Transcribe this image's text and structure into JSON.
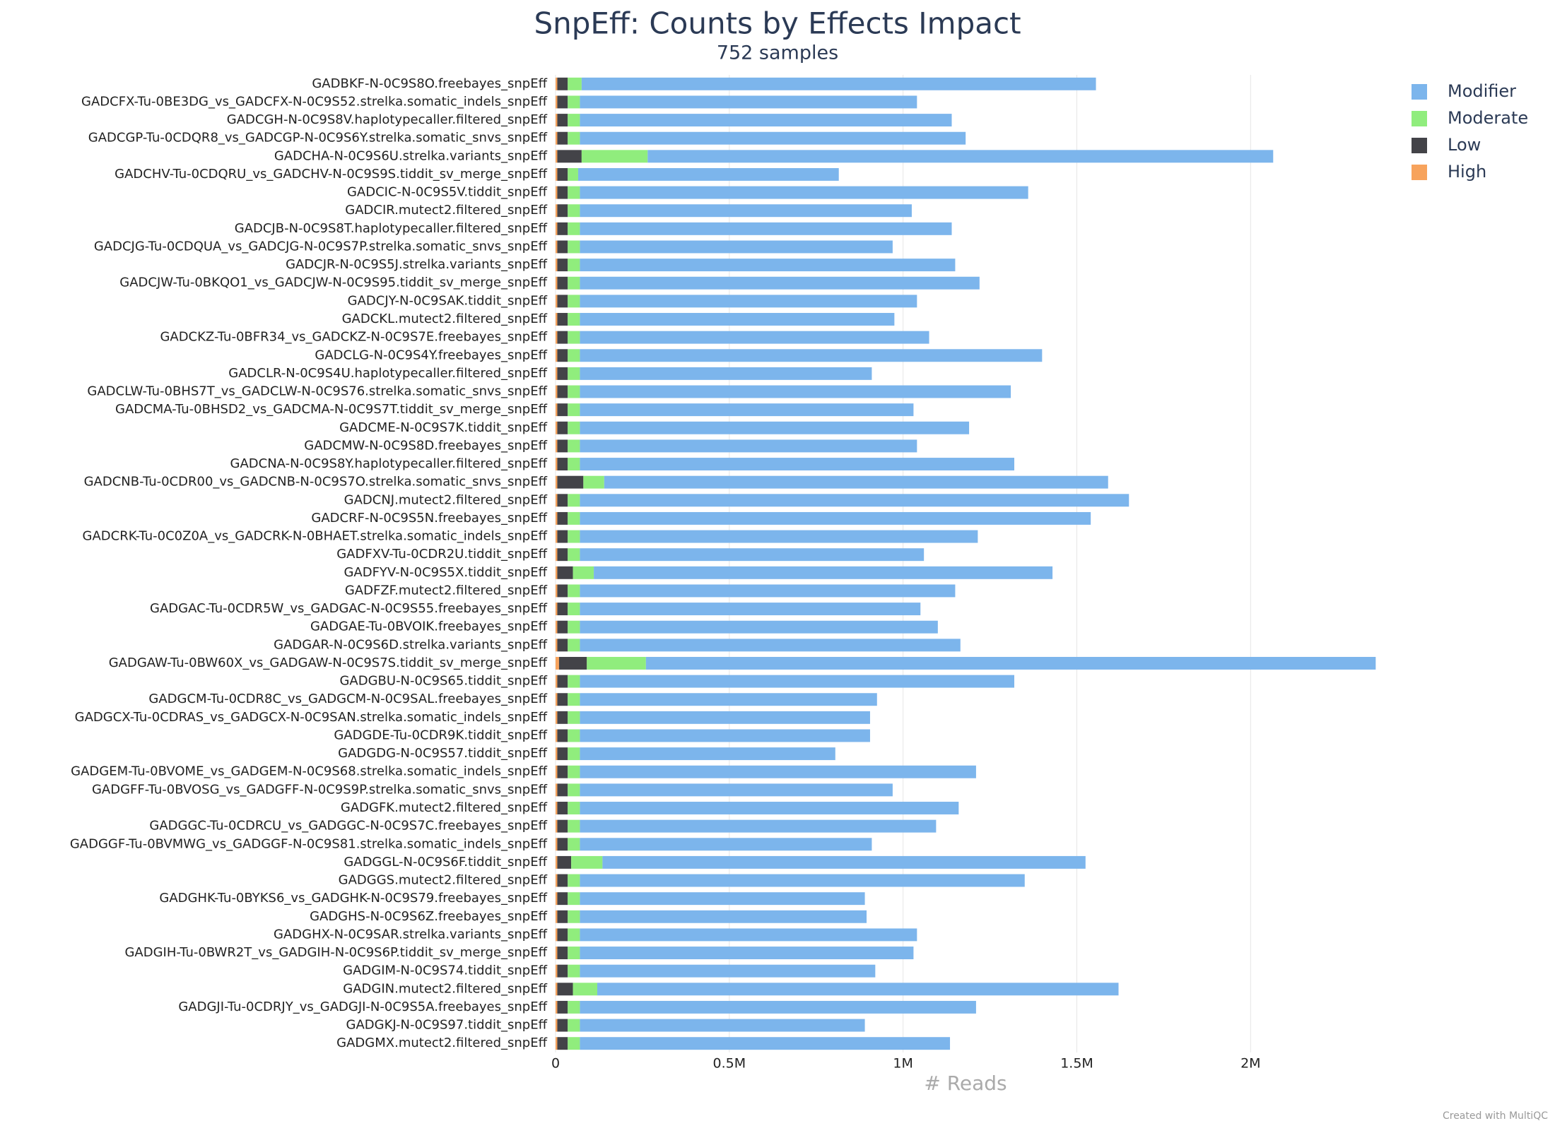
{
  "chart_data": {
    "type": "hbar_stacked",
    "title": "SnpEff: Counts by Effects Impact",
    "subtitle": "752 samples",
    "x_label": "# Reads",
    "credit": "Created with MultiQC",
    "categories": [
      "GADBKF-N-0C9S8O.freebayes_snpEff",
      "GADCFX-Tu-0BE3DG_vs_GADCFX-N-0C9S52.strelka.somatic_indels_snpEff",
      "GADCGH-N-0C9S8V.haplotypecaller.filtered_snpEff",
      "GADCGP-Tu-0CDQR8_vs_GADCGP-N-0C9S6Y.strelka.somatic_snvs_snpEff",
      "GADCHA-N-0C9S6U.strelka.variants_snpEff",
      "GADCHV-Tu-0CDQRU_vs_GADCHV-N-0C9S9S.tiddit_sv_merge_snpEff",
      "GADCIC-N-0C9S5V.tiddit_snpEff",
      "GADCIR.mutect2.filtered_snpEff",
      "GADCJB-N-0C9S8T.haplotypecaller.filtered_snpEff",
      "GADCJG-Tu-0CDQUA_vs_GADCJG-N-0C9S7P.strelka.somatic_snvs_snpEff",
      "GADCJR-N-0C9S5J.strelka.variants_snpEff",
      "GADCJW-Tu-0BKQO1_vs_GADCJW-N-0C9S95.tiddit_sv_merge_snpEff",
      "GADCJY-N-0C9SAK.tiddit_snpEff",
      "GADCKL.mutect2.filtered_snpEff",
      "GADCKZ-Tu-0BFR34_vs_GADCKZ-N-0C9S7E.freebayes_snpEff",
      "GADCLG-N-0C9S4Y.freebayes_snpEff",
      "GADCLR-N-0C9S4U.haplotypecaller.filtered_snpEff",
      "GADCLW-Tu-0BHS7T_vs_GADCLW-N-0C9S76.strelka.somatic_snvs_snpEff",
      "GADCMA-Tu-0BHSD2_vs_GADCMA-N-0C9S7T.tiddit_sv_merge_snpEff",
      "GADCME-N-0C9S7K.tiddit_snpEff",
      "GADCMW-N-0C9S8D.freebayes_snpEff",
      "GADCNA-N-0C9S8Y.haplotypecaller.filtered_snpEff",
      "GADCNB-Tu-0CDR00_vs_GADCNB-N-0C9S7O.strelka.somatic_snvs_snpEff",
      "GADCNJ.mutect2.filtered_snpEff",
      "GADCRF-N-0C9S5N.freebayes_snpEff",
      "GADCRK-Tu-0C0Z0A_vs_GADCRK-N-0BHAET.strelka.somatic_indels_snpEff",
      "GADFXV-Tu-0CDR2U.tiddit_snpEff",
      "GADFYV-N-0C9S5X.tiddit_snpEff",
      "GADFZF.mutect2.filtered_snpEff",
      "GADGAC-Tu-0CDR5W_vs_GADGAC-N-0C9S55.freebayes_snpEff",
      "GADGAE-Tu-0BVOIK.freebayes_snpEff",
      "GADGAR-N-0C9S6D.strelka.variants_snpEff",
      "GADGAW-Tu-0BW60X_vs_GADGAW-N-0C9S7S.tiddit_sv_merge_snpEff",
      "GADGBU-N-0C9S65.tiddit_snpEff",
      "GADGCM-Tu-0CDR8C_vs_GADGCM-N-0C9SAL.freebayes_snpEff",
      "GADGCX-Tu-0CDRAS_vs_GADGCX-N-0C9SAN.strelka.somatic_indels_snpEff",
      "GADGDE-Tu-0CDR9K.tiddit_snpEff",
      "GADGDG-N-0C9S57.tiddit_snpEff",
      "GADGEM-Tu-0BVOME_vs_GADGEM-N-0C9S68.strelka.somatic_indels_snpEff",
      "GADGFF-Tu-0BVOSG_vs_GADGFF-N-0C9S9P.strelka.somatic_snvs_snpEff",
      "GADGFK.mutect2.filtered_snpEff",
      "GADGGC-Tu-0CDRCU_vs_GADGGC-N-0C9S7C.freebayes_snpEff",
      "GADGGF-Tu-0BVMWG_vs_GADGGF-N-0C9S81.strelka.somatic_indels_snpEff",
      "GADGGL-N-0C9S6F.tiddit_snpEff",
      "GADGGS.mutect2.filtered_snpEff",
      "GADGHK-Tu-0BYKS6_vs_GADGHK-N-0C9S79.freebayes_snpEff",
      "GADGHS-N-0C9S6Z.freebayes_snpEff",
      "GADGHX-N-0C9SAR.strelka.variants_snpEff",
      "GADGIH-Tu-0BWR2T_vs_GADGIH-N-0C9S6P.tiddit_sv_merge_snpEff",
      "GADGIM-N-0C9S74.tiddit_snpEff",
      "GADGIN.mutect2.filtered_snpEff",
      "GADGJI-Tu-0CDRJY_vs_GADGJI-N-0C9S5A.freebayes_snpEff",
      "GADGKJ-N-0C9S97.tiddit_snpEff",
      "GADGMX.mutect2.filtered_snpEff"
    ],
    "series": [
      {
        "name": "Modifier",
        "color": "#7cb5ec",
        "values": [
          1480000,
          970000,
          1070000,
          1110000,
          1800000,
          750000,
          1290000,
          955000,
          1070000,
          900000,
          1080000,
          1150000,
          970000,
          905000,
          1005000,
          1330000,
          840000,
          1240000,
          960000,
          1120000,
          970000,
          1250000,
          1450000,
          1580000,
          1470000,
          1145000,
          990000,
          1320000,
          1080000,
          980000,
          1030000,
          1095000,
          2100000,
          1250000,
          855000,
          835000,
          835000,
          735000,
          1140000,
          900000,
          1090000,
          1025000,
          840000,
          1390000,
          1280000,
          820000,
          825000,
          970000,
          960000,
          850000,
          1500000,
          1140000,
          820000,
          1065000
        ]
      },
      {
        "name": "Moderate",
        "color": "#90ed7d",
        "values": [
          40000,
          35000,
          35000,
          35000,
          190000,
          30000,
          35000,
          35000,
          35000,
          35000,
          35000,
          35000,
          35000,
          35000,
          35000,
          35000,
          35000,
          35000,
          35000,
          35000,
          35000,
          35000,
          60000,
          35000,
          35000,
          35000,
          35000,
          60000,
          35000,
          35000,
          35000,
          35000,
          170000,
          35000,
          35000,
          35000,
          35000,
          35000,
          35000,
          35000,
          35000,
          35000,
          35000,
          90000,
          35000,
          35000,
          35000,
          35000,
          35000,
          35000,
          70000,
          35000,
          35000,
          35000
        ]
      },
      {
        "name": "Low",
        "color": "#434348",
        "values": [
          30000,
          30000,
          30000,
          30000,
          70000,
          30000,
          30000,
          30000,
          30000,
          30000,
          30000,
          30000,
          30000,
          30000,
          30000,
          30000,
          30000,
          30000,
          30000,
          30000,
          30000,
          30000,
          75000,
          30000,
          30000,
          30000,
          30000,
          45000,
          30000,
          30000,
          30000,
          30000,
          80000,
          30000,
          30000,
          30000,
          30000,
          30000,
          30000,
          30000,
          30000,
          30000,
          30000,
          40000,
          30000,
          30000,
          30000,
          30000,
          30000,
          30000,
          45000,
          30000,
          30000,
          30000
        ]
      },
      {
        "name": "High",
        "color": "#f7a35c",
        "values": [
          5000,
          5000,
          5000,
          5000,
          5000,
          5000,
          5000,
          5000,
          5000,
          5000,
          5000,
          5000,
          5000,
          5000,
          5000,
          5000,
          5000,
          5000,
          5000,
          5000,
          5000,
          5000,
          5000,
          5000,
          5000,
          5000,
          5000,
          5000,
          5000,
          5000,
          5000,
          5000,
          10000,
          5000,
          5000,
          5000,
          5000,
          5000,
          5000,
          5000,
          5000,
          5000,
          5000,
          5000,
          5000,
          5000,
          5000,
          5000,
          5000,
          5000,
          5000,
          5000,
          5000,
          5000
        ]
      }
    ],
    "xlim": [
      0,
      2400000
    ],
    "xticks": [
      0,
      {
        "value": 500000,
        "label": "0.5M"
      },
      {
        "value": 1000000,
        "label": "1M"
      },
      {
        "value": 1500000,
        "label": "1.5M"
      },
      {
        "value": 2000000,
        "label": "2M"
      }
    ],
    "grid": true,
    "legend": "top-right"
  }
}
